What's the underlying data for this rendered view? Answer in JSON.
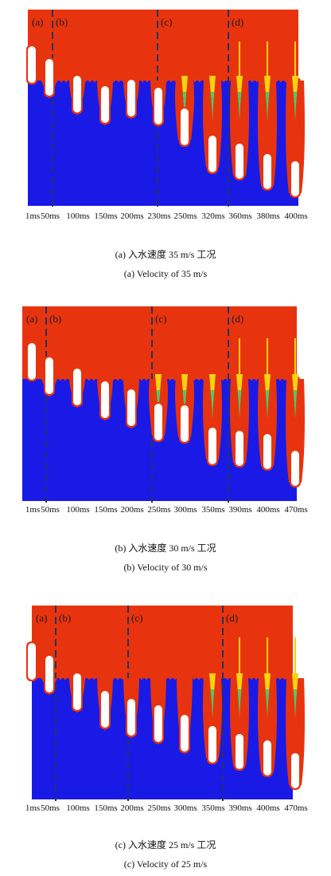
{
  "figure": {
    "panels": [
      {
        "id": "a",
        "stage_labels": [
          "(a)",
          "(b)",
          "(c)",
          "(d)"
        ],
        "time_labels": [
          "1ms",
          "50ms",
          "100ms",
          "150ms",
          "200ms",
          "230ms",
          "250ms",
          "320ms",
          "360ms",
          "380ms",
          "400ms"
        ],
        "caption_cn": "(a) 入水速度 35 m/s 工况",
        "caption_en": "(a) Velocity of 35 m/s"
      },
      {
        "id": "b",
        "stage_labels": [
          "(a)",
          "(b)",
          "(c)",
          "(d)"
        ],
        "time_labels": [
          "1ms",
          "50ms",
          "100ms",
          "150ms",
          "200ms",
          "250ms",
          "300ms",
          "350ms",
          "390ms",
          "400ms",
          "470ms"
        ],
        "caption_cn": "(b) 入水速度 30 m/s 工况",
        "caption_en": "(b) Velocity of 30 m/s"
      },
      {
        "id": "c",
        "stage_labels": [
          "(a)",
          "(b)",
          "(c)",
          "(d)"
        ],
        "time_labels": [
          "1ms",
          "50ms",
          "100ms",
          "150ms",
          "200ms",
          "250ms",
          "300ms",
          "350ms",
          "390ms",
          "400ms",
          "470ms"
        ],
        "caption_cn": "(c) 入水速度 25 m/s 工况",
        "caption_en": "(c) Velocity of 25 m/s"
      }
    ],
    "colors": {
      "air": "#e8340e",
      "water": "#1a1ae6",
      "body": "#ffffff",
      "cavity_wall": "#e8340e",
      "mixing_yellow": "#f5d40f",
      "mixing_green": "#3fcf6a",
      "divider": "#223366"
    }
  }
}
